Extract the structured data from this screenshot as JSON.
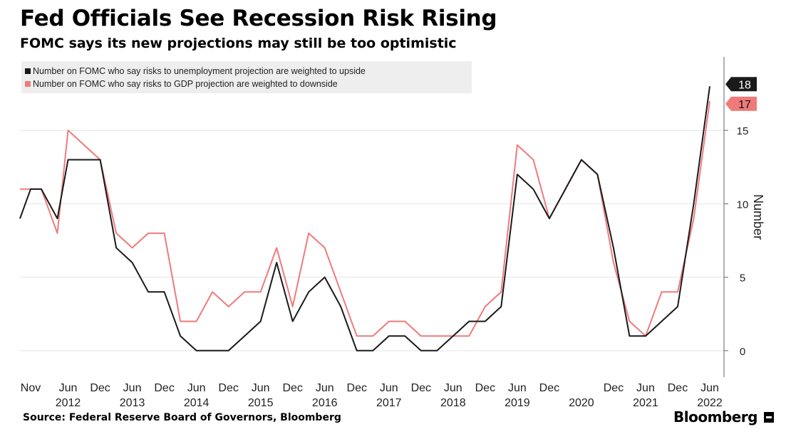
{
  "title": "Fed Officials See Recession Risk Rising",
  "subtitle": "FOMC says its new projections may still be too optimistic",
  "source": "Source: Federal Reserve Board of Governors, Bloomberg",
  "brand": "Bloomberg",
  "brand_icon": "bloomberg-terminal-icon",
  "chart_data": {
    "type": "line",
    "ylabel": "Number",
    "ylim": [
      -1.8,
      20
    ],
    "yticks": [
      0,
      5,
      10,
      15
    ],
    "ytick_labels": [
      "0",
      "5",
      "10",
      "15"
    ],
    "grid": true,
    "legend_position": "top-left",
    "x": [
      "2011-09",
      "2011-11",
      "2012-01",
      "2012-04",
      "2012-06",
      "2012-09",
      "2012-12",
      "2013-03",
      "2013-06",
      "2013-09",
      "2013-12",
      "2014-03",
      "2014-06",
      "2014-09",
      "2014-12",
      "2015-03",
      "2015-06",
      "2015-09",
      "2015-12",
      "2016-03",
      "2016-06",
      "2016-09",
      "2016-12",
      "2017-03",
      "2017-06",
      "2017-09",
      "2017-12",
      "2018-03",
      "2018-06",
      "2018-09",
      "2018-12",
      "2019-03",
      "2019-06",
      "2019-09",
      "2019-12",
      "2020-06",
      "2020-09",
      "2020-12",
      "2021-03",
      "2021-06",
      "2021-09",
      "2021-12",
      "2022-03",
      "2022-06"
    ],
    "x_tick_labels": [
      {
        "x": "2011-11",
        "month": "Nov",
        "year": ""
      },
      {
        "x": "2012-06",
        "month": "Jun",
        "year": "2012"
      },
      {
        "x": "2012-12",
        "month": "Dec",
        "year": ""
      },
      {
        "x": "2013-06",
        "month": "Jun",
        "year": "2013"
      },
      {
        "x": "2013-12",
        "month": "Dec",
        "year": ""
      },
      {
        "x": "2014-06",
        "month": "Jun",
        "year": "2014"
      },
      {
        "x": "2014-12",
        "month": "Dec",
        "year": ""
      },
      {
        "x": "2015-06",
        "month": "Jun",
        "year": "2015"
      },
      {
        "x": "2015-12",
        "month": "Dec",
        "year": ""
      },
      {
        "x": "2016-06",
        "month": "Jun",
        "year": "2016"
      },
      {
        "x": "2016-12",
        "month": "Dec",
        "year": ""
      },
      {
        "x": "2017-06",
        "month": "Jun",
        "year": "2017"
      },
      {
        "x": "2017-12",
        "month": "Dec",
        "year": ""
      },
      {
        "x": "2018-06",
        "month": "Jun",
        "year": "2018"
      },
      {
        "x": "2018-12",
        "month": "Dec",
        "year": ""
      },
      {
        "x": "2019-06",
        "month": "Jun",
        "year": "2019"
      },
      {
        "x": "2019-12",
        "month": "Dec",
        "year": ""
      },
      {
        "x": "2020-06",
        "month": "",
        "year": "2020"
      },
      {
        "x": "2020-12",
        "month": "Dec",
        "year": ""
      },
      {
        "x": "2021-06",
        "month": "Jun",
        "year": "2021"
      },
      {
        "x": "2021-12",
        "month": "Dec",
        "year": ""
      },
      {
        "x": "2022-06",
        "month": "Jun",
        "year": "2022"
      }
    ],
    "series": [
      {
        "name": "Number on FOMC who say risks to unemployment projection are weighted to upside",
        "color": "#1a1a1a",
        "end_label": "18",
        "values": [
          9,
          11,
          11,
          9,
          13,
          13,
          13,
          7,
          6,
          4,
          4,
          1,
          0,
          0,
          0,
          1,
          2,
          6,
          2,
          4,
          5,
          3,
          0,
          0,
          1,
          1,
          0,
          0,
          1,
          2,
          2,
          3,
          12,
          11,
          9,
          13,
          12,
          7,
          1,
          1,
          2,
          3,
          10,
          18
        ]
      },
      {
        "name": "Number on FOMC who say risks to GDP projection are weighted to downside",
        "color": "#f07a7a",
        "end_label": "17",
        "values": [
          11,
          11,
          11,
          8,
          15,
          14,
          13,
          8,
          7,
          8,
          8,
          2,
          2,
          4,
          3,
          4,
          4,
          7,
          3,
          8,
          7,
          4,
          1,
          1,
          2,
          2,
          1,
          1,
          1,
          1,
          3,
          4,
          14,
          13,
          9,
          13,
          12,
          6,
          2,
          1,
          4,
          4,
          9,
          17
        ]
      }
    ]
  }
}
